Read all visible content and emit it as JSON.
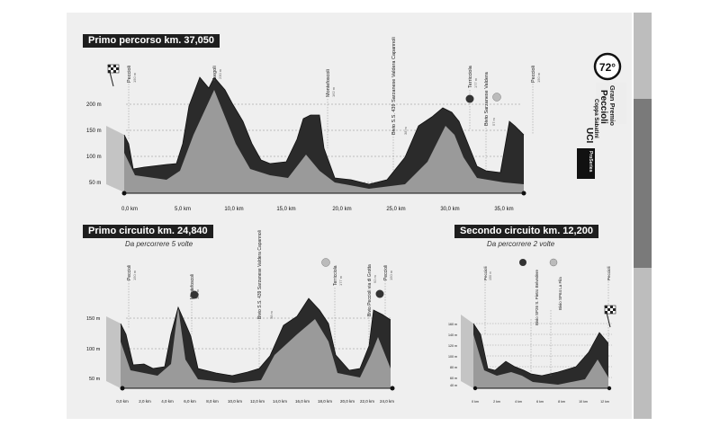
{
  "profiles": [
    {
      "id": "primo-percorso",
      "title": "Primo percorso km. 37,050",
      "subtitle": "",
      "x_ticks": [
        "0,0 km",
        "5,0 km",
        "10,0 km",
        "15,0 km",
        "20,0 km",
        "25,0 km",
        "30,0 km",
        "35,0 km"
      ],
      "y_ticks": [
        "200 m",
        "150 m",
        "100 m",
        "50 m"
      ],
      "places": [
        "Peccioli",
        "Legoli",
        "Montefoscoli",
        "Bivio S.S. 439 Sarzanese Valdera Capannoli",
        "Terricciola",
        "Bivio Sarzanese Valdera",
        "Peccioli"
      ],
      "place_alts": [
        "150 m",
        "230 m",
        "162 m",
        "38 m",
        "177 m",
        "57 m",
        "150 m"
      ]
    },
    {
      "id": "primo-circuito",
      "title": "Primo circuito km. 24,840",
      "subtitle": "Da percorrere 5 volte",
      "x_ticks": [
        "0,0 km",
        "2,0 km",
        "4,0 km",
        "6,0 km",
        "8,0 km",
        "10,0 km",
        "12,0 km",
        "14,0 km",
        "16,0 km",
        "18,0 km",
        "20,0 km",
        "22,0 km",
        "24,0 km"
      ],
      "y_ticks": [
        "150 m",
        "100 m",
        "50 m"
      ],
      "places": [
        "Peccioli",
        "Montefoscoli",
        "Bivio S.S. 439 Sarzanese Valdera Capannoli",
        "Terricciola",
        "Bivio Peccioli via di Grotta",
        "Peccioli"
      ],
      "place_alts": [
        "150 m",
        "162 m",
        "38 m",
        "177 m",
        "92 m",
        "150 m"
      ]
    },
    {
      "id": "secondo-circuito",
      "title": "Secondo circuito km. 12,200",
      "subtitle": "Da percorrere 2 volte",
      "x_ticks": [
        "0 km",
        "2 km",
        "4 km",
        "6 km",
        "8 km",
        "10 km",
        "12 km"
      ],
      "y_ticks": [
        "160 m",
        "140 m",
        "120 m",
        "100 m",
        "80 m",
        "60 m",
        "40 m"
      ],
      "places": [
        "Peccioli",
        "Bivio SP26 S. Pietro Belvedere",
        "Bivio SP64 La Fila",
        "Peccioli"
      ],
      "place_alts": [
        "150 m",
        "",
        "",
        ""
      ]
    }
  ],
  "logo": {
    "edition": "72°",
    "name_line1": "Gran Premio",
    "name_line2": "Peccioli",
    "name_line3": "Coppa Sabatini",
    "uci": "UCI",
    "series": "ProSeries"
  },
  "colors": {
    "climb_dark": "#2b2b2b",
    "profile_light": "#9a9a9a",
    "side_face": "#c4c4c4",
    "sheet": "#efefef"
  }
}
